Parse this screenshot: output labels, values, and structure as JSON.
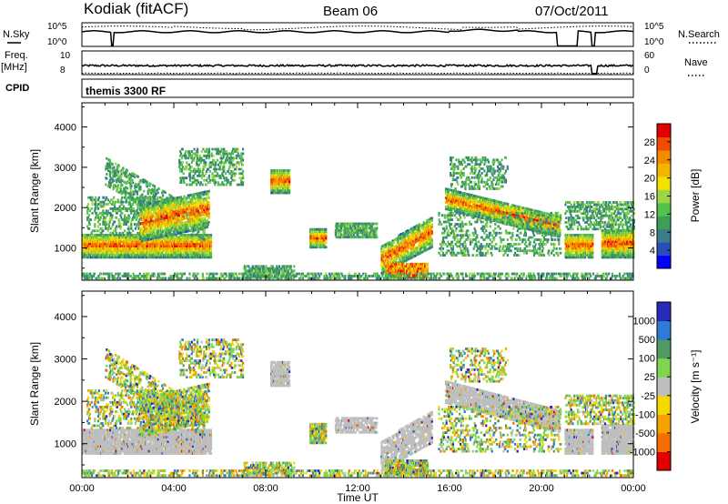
{
  "header": {
    "station": "Kodiak (fitACF)",
    "beam": "Beam 06",
    "date": "07/Oct/2011"
  },
  "strips": {
    "nsky_label": "N.Sky",
    "nsky_ticks": [
      "10^5",
      "10^0"
    ],
    "nsearch_label": "N.Search",
    "nsearch_ticks": [
      "10^5",
      "10^0"
    ],
    "freq_label_1": "Freq.",
    "freq_label_2": "[MHz]",
    "freq_ticks": [
      "10",
      "8"
    ],
    "nave_label": "Nave",
    "nave_ticks": [
      "60",
      "0"
    ],
    "cpid_label": "CPID",
    "cpid_value": "themis 3300 RF"
  },
  "chart_data": [
    {
      "type": "heatmap",
      "name": "power",
      "ylabel": "Slant Range [km]",
      "xlabel": "",
      "yticks": [
        "1000",
        "2000",
        "3000",
        "4000"
      ],
      "ylim": [
        200,
        4600
      ],
      "xlim_hours": [
        0,
        24
      ],
      "colorbar": {
        "label": "Power [dB]",
        "ticks": [
          "4",
          "8",
          "12",
          "16",
          "20",
          "24",
          "28"
        ],
        "range": [
          0,
          32
        ],
        "colors": [
          "#0000ff",
          "#2a4dbb",
          "#3d7d8a",
          "#3c9e58",
          "#55c24a",
          "#9bd646",
          "#f1e200",
          "#f5b400",
          "#f58a00",
          "#f04c00",
          "#e00000"
        ]
      }
    },
    {
      "type": "heatmap",
      "name": "velocity",
      "ylabel": "Slant Range [km]",
      "xlabel": "Time UT",
      "yticks": [
        "1000",
        "2000",
        "3000",
        "4000"
      ],
      "ylim": [
        200,
        4600
      ],
      "xlim_hours": [
        0,
        24
      ],
      "xticks": [
        "00:00",
        "04:00",
        "08:00",
        "12:00",
        "16:00",
        "20:00",
        "00:00"
      ],
      "colorbar": {
        "label": "Velocity [m s⁻¹]",
        "ticks": [
          "1000",
          "500",
          "100",
          "25",
          "-25",
          "-100",
          "-500",
          "-1000"
        ],
        "colors": [
          "#2a2ab8",
          "#2d7bd4",
          "#4f9c63",
          "#7ed64f",
          "#bebebe",
          "#f5d800",
          "#f5a200",
          "#f56d00",
          "#e00000"
        ]
      }
    }
  ]
}
